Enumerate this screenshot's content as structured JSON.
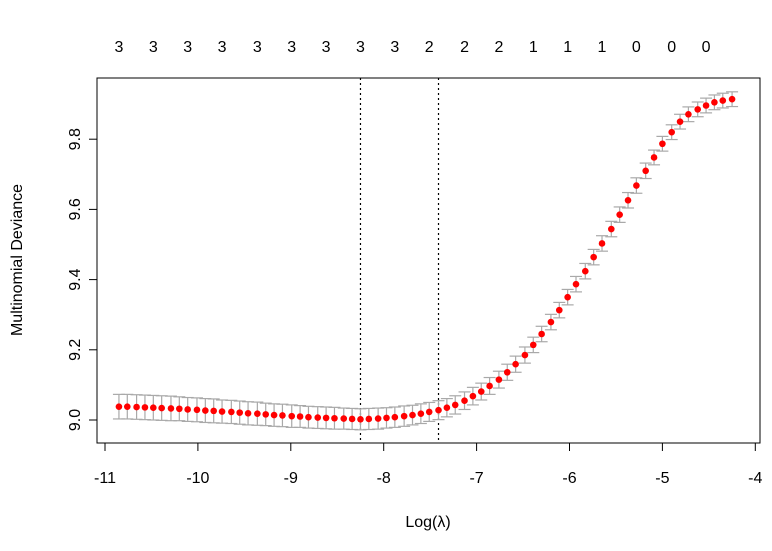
{
  "chart_data": {
    "type": "scatter",
    "title": "",
    "xlabel": "Log(λ)",
    "ylabel": "Multinomial Deviance",
    "xlim": [
      -11,
      -4
    ],
    "ylim": [
      8.96,
      9.96
    ],
    "x_ticks": [
      "-11",
      "-10",
      "-9",
      "-8",
      "-7",
      "-6",
      "-5",
      "-4"
    ],
    "y_ticks": [
      "9.0",
      "9.2",
      "9.4",
      "9.6",
      "9.8"
    ],
    "grid": false,
    "point_color": "#ff0000",
    "errorbar_color": "#a9a9a9",
    "x": [
      -10.85,
      -10.76,
      -10.66,
      -10.57,
      -10.48,
      -10.39,
      -10.29,
      -10.2,
      -10.11,
      -10.01,
      -9.92,
      -9.83,
      -9.74,
      -9.64,
      -9.55,
      -9.46,
      -9.36,
      -9.27,
      -9.18,
      -9.09,
      -8.99,
      -8.9,
      -8.81,
      -8.71,
      -8.62,
      -8.53,
      -8.43,
      -8.34,
      -8.25,
      -8.16,
      -8.06,
      -7.97,
      -7.88,
      -7.78,
      -7.69,
      -7.6,
      -7.51,
      -7.41,
      -7.32,
      -7.23,
      -7.13,
      -7.04,
      -6.95,
      -6.86,
      -6.76,
      -6.67,
      -6.58,
      -6.48,
      -6.39,
      -6.3,
      -6.2,
      -6.11,
      -6.02,
      -5.93,
      -5.83,
      -5.74,
      -5.65,
      -5.55,
      -5.46,
      -5.37,
      -5.28,
      -5.18,
      -5.09,
      -5.0,
      -4.9,
      -4.81,
      -4.72,
      -4.62,
      -4.53,
      -4.44,
      -4.35,
      -4.25
    ],
    "y": [
      9.038,
      9.038,
      9.037,
      9.036,
      9.035,
      9.034,
      9.033,
      9.032,
      9.03,
      9.029,
      9.027,
      9.026,
      9.024,
      9.023,
      9.021,
      9.019,
      9.018,
      9.016,
      9.014,
      9.013,
      9.011,
      9.01,
      9.008,
      9.007,
      9.006,
      9.005,
      9.004,
      9.003,
      9.002,
      9.003,
      9.004,
      9.006,
      9.008,
      9.011,
      9.014,
      9.018,
      9.023,
      9.028,
      9.035,
      9.043,
      9.055,
      9.068,
      9.081,
      9.097,
      9.115,
      9.136,
      9.159,
      9.185,
      9.214,
      9.245,
      9.279,
      9.313,
      9.35,
      9.387,
      9.424,
      9.464,
      9.503,
      9.544,
      9.585,
      9.626,
      9.668,
      9.71,
      9.748,
      9.787,
      9.82,
      9.85,
      9.871,
      9.885,
      9.896,
      9.905,
      9.91,
      9.914
    ],
    "se": [
      0.035,
      0.035,
      0.035,
      0.035,
      0.035,
      0.035,
      0.035,
      0.034,
      0.034,
      0.034,
      0.034,
      0.034,
      0.033,
      0.033,
      0.033,
      0.033,
      0.033,
      0.032,
      0.032,
      0.032,
      0.032,
      0.031,
      0.031,
      0.031,
      0.031,
      0.031,
      0.03,
      0.03,
      0.03,
      0.03,
      0.03,
      0.029,
      0.029,
      0.029,
      0.028,
      0.028,
      0.027,
      0.027,
      0.026,
      0.026,
      0.025,
      0.025,
      0.024,
      0.024,
      0.024,
      0.023,
      0.023,
      0.023,
      0.022,
      0.022,
      0.022,
      0.022,
      0.022,
      0.022,
      0.022,
      0.022,
      0.022,
      0.022,
      0.022,
      0.022,
      0.022,
      0.022,
      0.021,
      0.021,
      0.021,
      0.021,
      0.021,
      0.021,
      0.021,
      0.021,
      0.021,
      0.021
    ],
    "vlines": [
      -8.25,
      -7.41
    ],
    "top_axis": {
      "x": [
        -10.85,
        -10.48,
        -10.11,
        -9.74,
        -9.36,
        -8.99,
        -8.62,
        -8.25,
        -7.88,
        -7.51,
        -7.13,
        -6.76,
        -6.39,
        -6.02,
        -5.65,
        -5.28,
        -4.9,
        -4.53
      ],
      "labels": [
        "3",
        "3",
        "3",
        "3",
        "3",
        "3",
        "3",
        "3",
        "3",
        "2",
        "2",
        "2",
        "1",
        "1",
        "1",
        "0",
        "0",
        "0"
      ]
    }
  }
}
